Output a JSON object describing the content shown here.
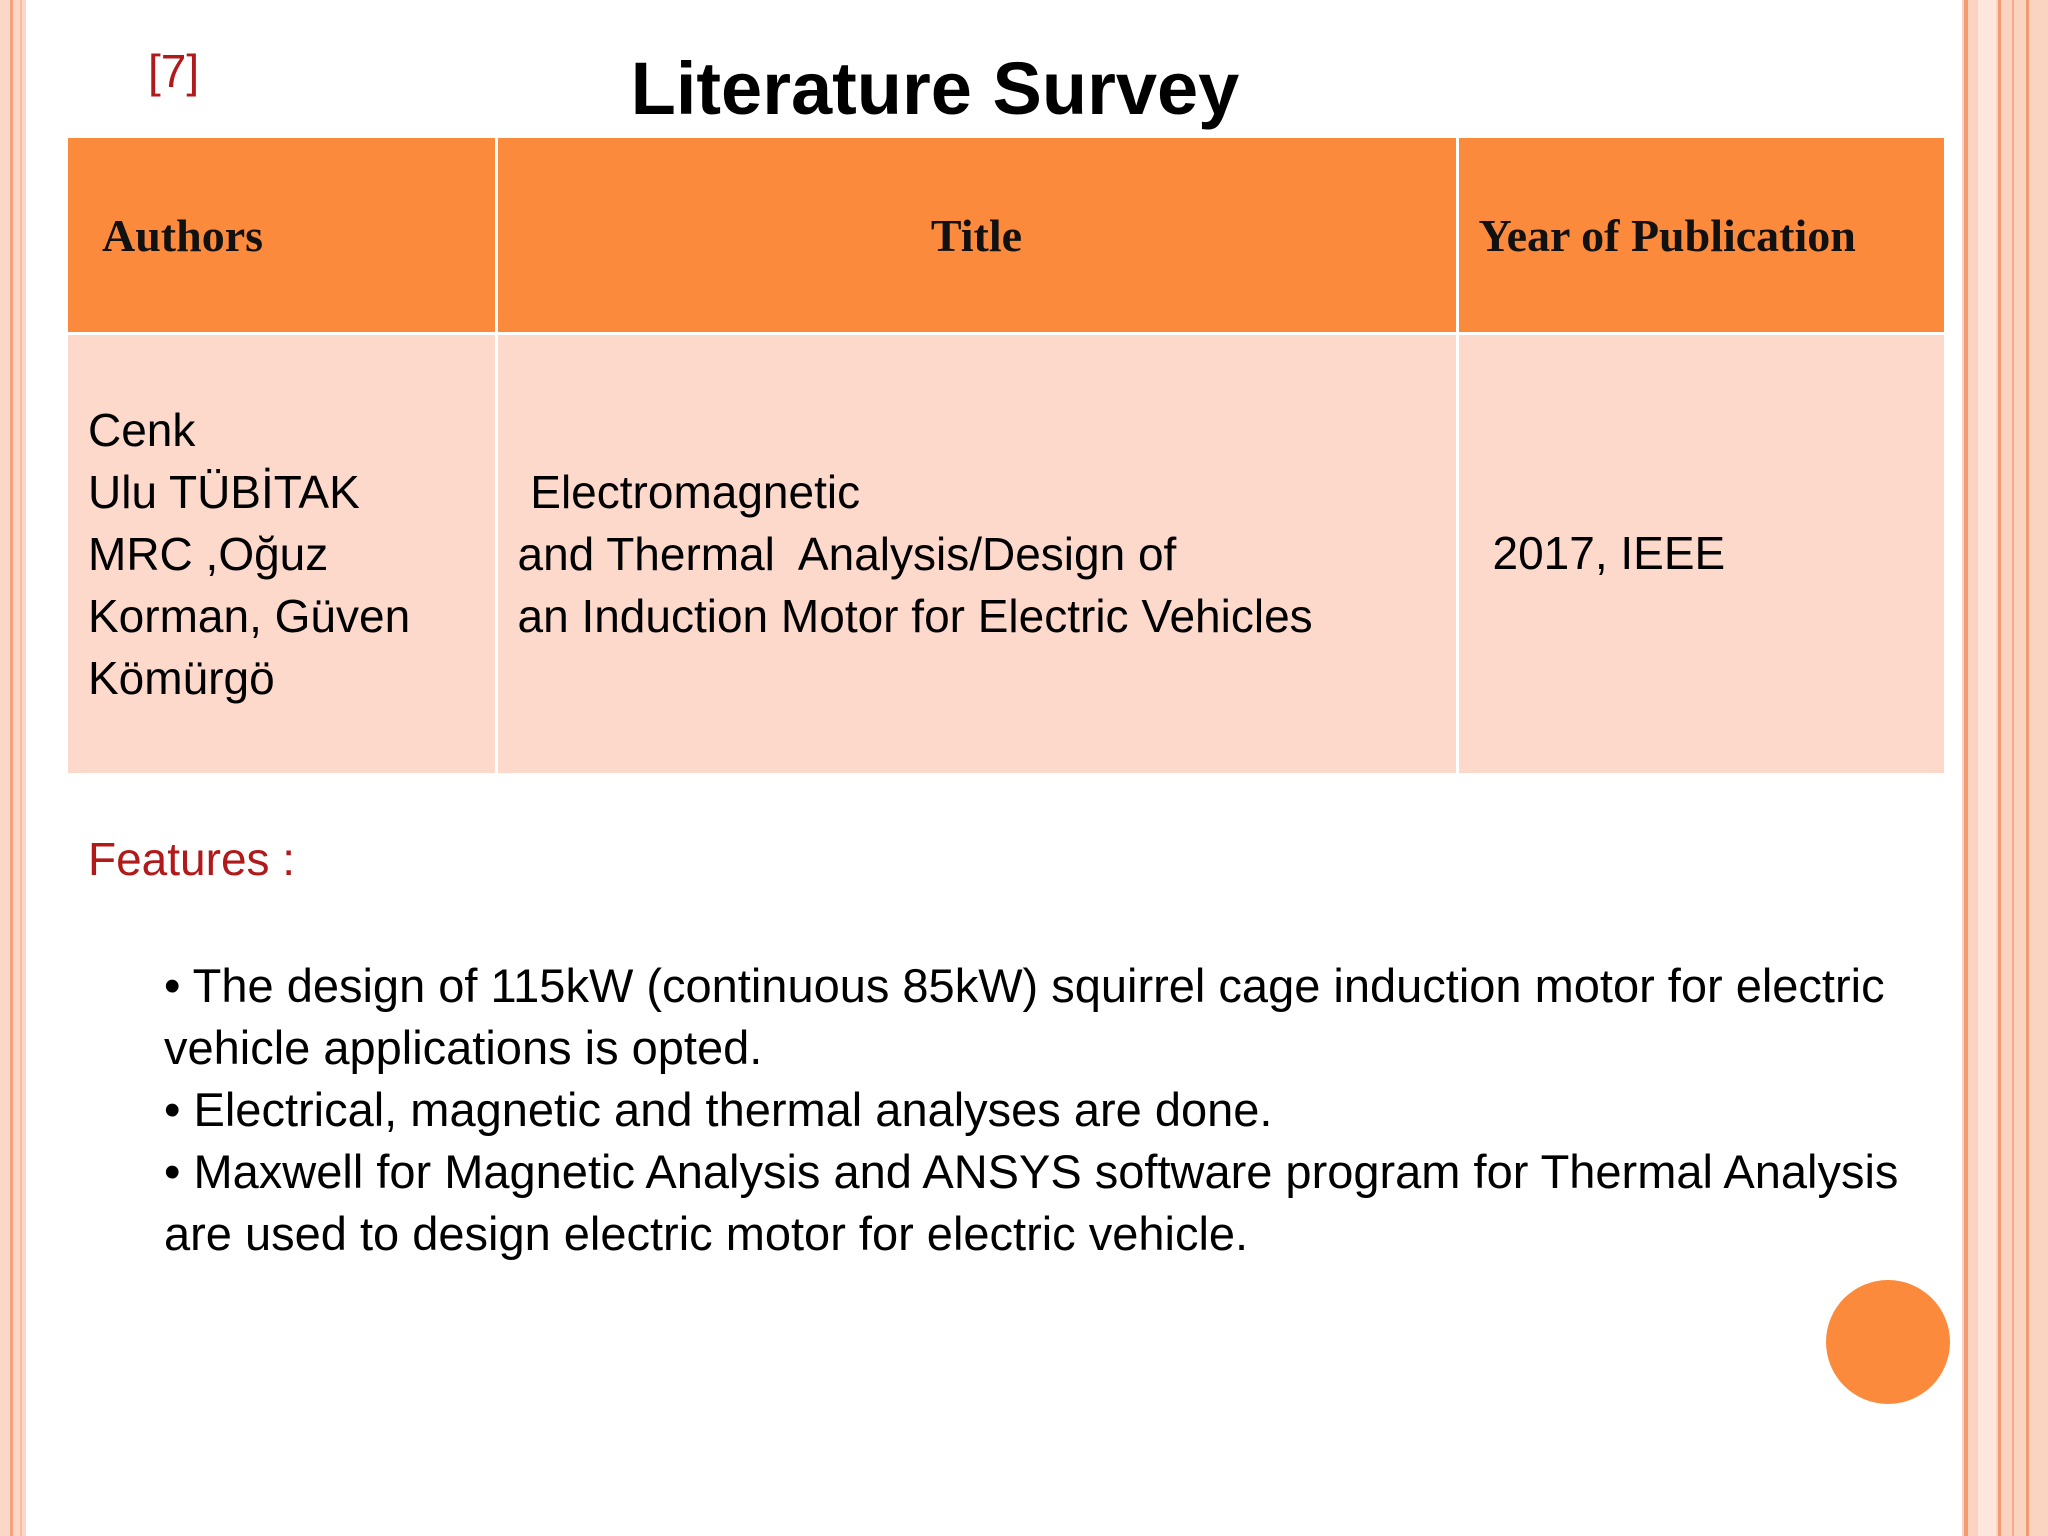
{
  "slide": {
    "ref_tag": "[7]",
    "title": "Literature Survey"
  },
  "table": {
    "headers": {
      "authors": "Authors",
      "title": "Title",
      "year": "Year of Publication"
    },
    "row": {
      "authors_lines": [
        "Cenk",
        "Ulu TÜBİTAK",
        "MRC ,Oğuz",
        "Korman, Güven",
        "Kömürgö"
      ],
      "title_lines": [
        " Electromagnetic",
        "and Thermal  Analysis/Design of",
        "an Induction Motor for Electric Vehicles"
      ],
      "year": "2017, IEEE"
    }
  },
  "features": {
    "label": "Features :",
    "bullets": [
      "• The design of 115kW (continuous 85kW) squirrel cage induction motor for electric vehicle applications is opted.",
      "• Electrical, magnetic and thermal analyses are done.",
      "• Maxwell for Magnetic Analysis and ANSYS software program for Thermal Analysis are used to design electric motor for electric vehicle."
    ]
  },
  "colors": {
    "accent": "#fb8a3c",
    "row_fill": "#fdd9cc",
    "label_red": "#b01a1a"
  }
}
